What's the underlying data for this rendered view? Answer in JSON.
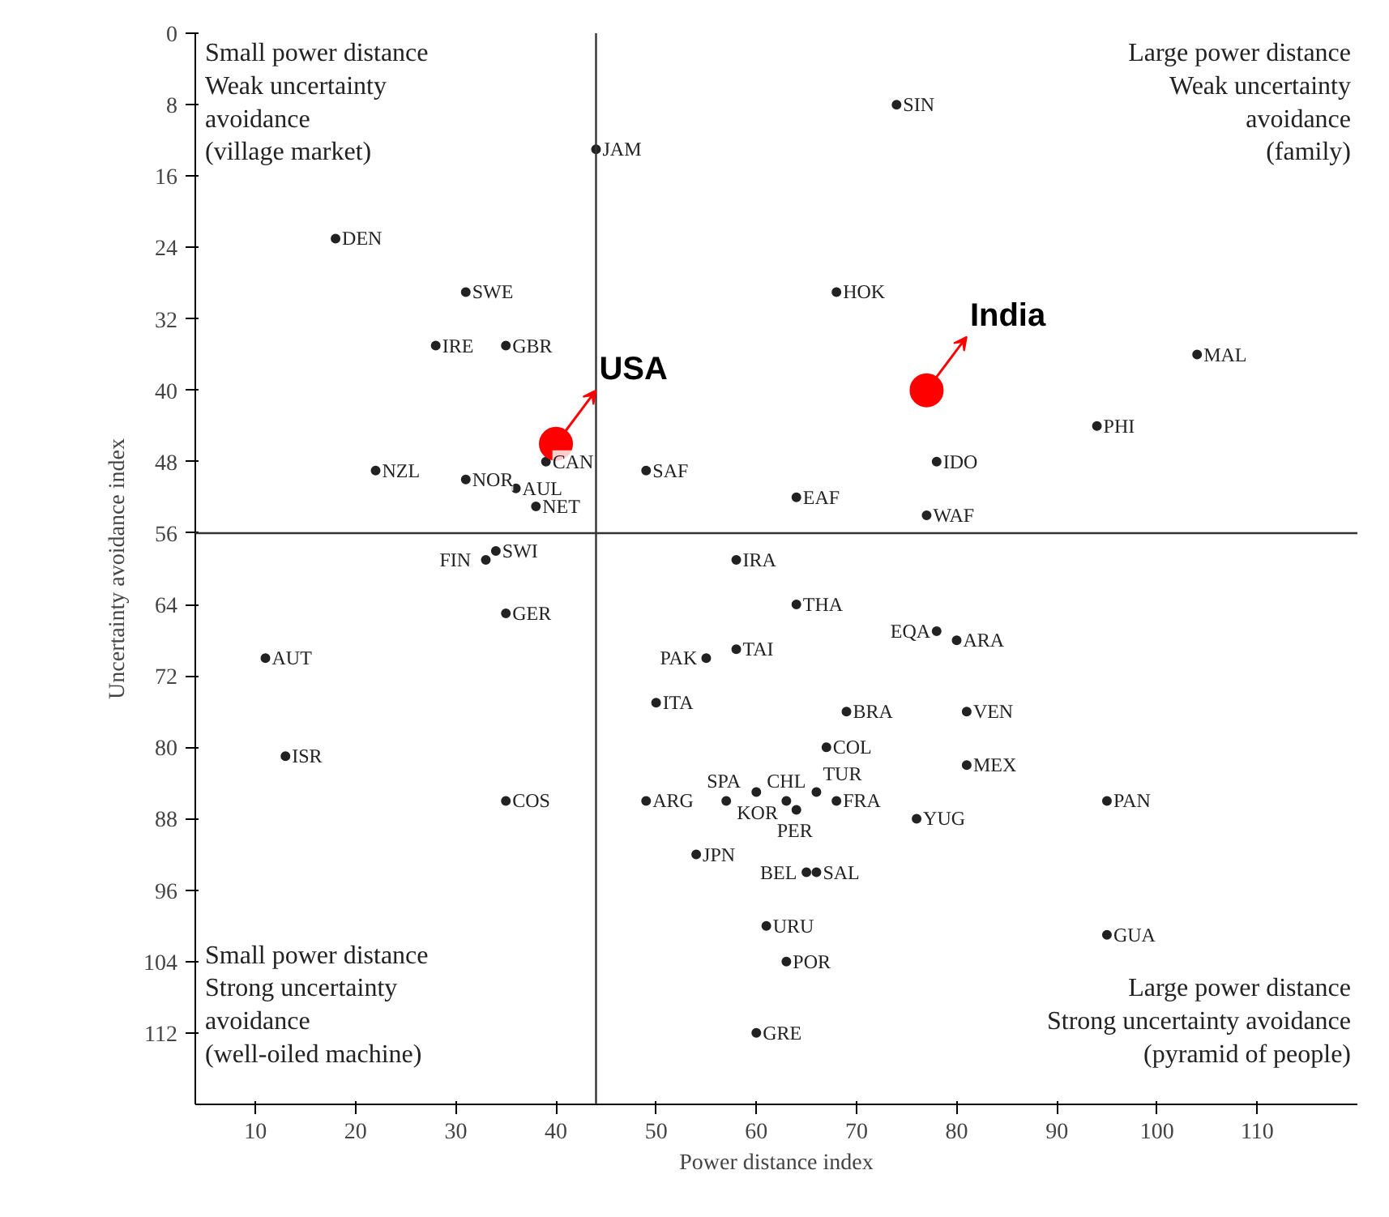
{
  "chart_data": {
    "type": "scatter",
    "xlabel": "Power distance index",
    "ylabel": "Uncertainty avoidance index",
    "xlim": [
      4,
      120
    ],
    "ylim": [
      120,
      0
    ],
    "xticks": [
      10,
      20,
      30,
      40,
      50,
      60,
      70,
      80,
      90,
      100,
      110
    ],
    "yticks": [
      0,
      8,
      16,
      24,
      32,
      40,
      48,
      56,
      64,
      72,
      80,
      88,
      96,
      104,
      112
    ],
    "grid": false,
    "legend": false,
    "marker": "circle",
    "ref_lines": [
      {
        "axis": "x",
        "value": 44,
        "label": null
      },
      {
        "axis": "y",
        "value": 56,
        "label": null
      }
    ],
    "annotations": [
      "Small power distance\nWeak uncertainty\navoidance\n(village market)",
      "Large power distance\nWeak uncertainty\navoidance\n(family)",
      "Small power distance\nStrong uncertainty\navoidance\n(well-oiled machine)",
      "Large power distance\nStrong uncertainty avoidance\n(pyramid of people)"
    ],
    "series": [
      {
        "color": "#222222",
        "x": [
          44,
          74,
          68,
          18,
          31,
          28,
          35,
          104,
          94,
          78,
          22,
          39,
          31,
          36,
          38,
          49,
          64,
          77,
          34,
          33,
          35,
          58,
          64,
          78,
          80,
          55,
          58,
          11,
          13,
          50,
          69,
          81,
          63,
          67,
          81,
          66,
          95,
          35,
          49,
          57,
          60,
          64,
          68,
          76,
          54,
          65,
          66,
          95,
          61,
          63,
          60
        ],
        "values": [
          13,
          8,
          29,
          23,
          29,
          35,
          35,
          36,
          44,
          48,
          49,
          48,
          50,
          51,
          53,
          49,
          52,
          54,
          58,
          59,
          65,
          59,
          64,
          67,
          68,
          70,
          69,
          70,
          81,
          75,
          76,
          76,
          86,
          80,
          82,
          85,
          86,
          86,
          86,
          86,
          85,
          87,
          86,
          88,
          92,
          94,
          94,
          101,
          100,
          104,
          112
        ],
        "value_labels": [
          "JAM",
          "SIN",
          "HOK",
          "DEN",
          "SWE",
          "IRE",
          "GBR",
          "MAL",
          "PHI",
          "IDO",
          "NZL",
          "CAN",
          "NOR",
          "AUL",
          "NET",
          "SAF",
          "EAF",
          "WAF",
          "SWI",
          "FIN",
          "GER",
          "IRA",
          "THA",
          "EQA",
          "ARA",
          "PAK",
          "TAI",
          "AUT",
          "ISR",
          "ITA",
          "BRA",
          "VEN",
          "CHL",
          "COL",
          "MEX",
          "TUR",
          "PAN",
          "COS",
          "ARG",
          "SPA",
          "KOR",
          "PER",
          "FRA",
          "YUG",
          "JPN",
          "BEL",
          "SAL",
          "GUA",
          "URU",
          "POR",
          "GRE"
        ]
      },
      {
        "name": "USA",
        "color": "#ff0000",
        "x": [
          40
        ],
        "values": [
          46
        ]
      },
      {
        "name": "India",
        "color": "#ff0000",
        "x": [
          77
        ],
        "values": [
          40
        ]
      }
    ]
  }
}
